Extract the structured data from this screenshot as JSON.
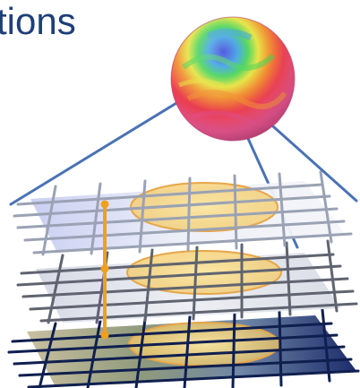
{
  "slide": {
    "title_fragment": "tions"
  },
  "diagram": {
    "colors": {
      "title": "#1f3f7a",
      "projection_lines": "#4a72b5",
      "top_grid": "#9aa2b4",
      "middle_grid": "#5f6470",
      "bottom_grid": "#0f1f4f",
      "highlight_fill": "#f5cc6b",
      "connector": "#f0a020"
    },
    "layers": [
      "top-grid-layer",
      "middle-grid-layer",
      "bottom-grid-layer"
    ]
  }
}
